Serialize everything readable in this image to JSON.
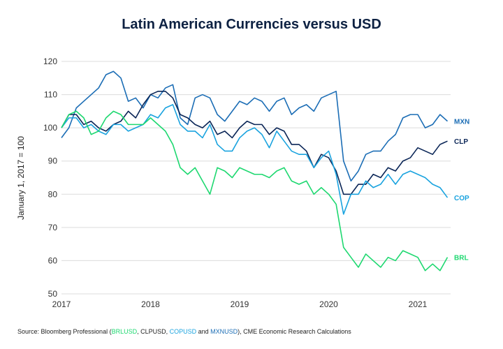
{
  "chart_data": {
    "type": "line",
    "title": "Latin American Currencies versus USD",
    "xlabel": "",
    "ylabel": "January 1, 2017 = 100",
    "ylim": [
      50,
      120
    ],
    "yticks": [
      "50",
      "60",
      "70",
      "80",
      "90",
      "100",
      "110",
      "120"
    ],
    "xticks": [
      "2017",
      "2018",
      "2019",
      "2020",
      "2021"
    ],
    "xrange": [
      "2017-01",
      "2021-05"
    ],
    "grid": "horizontal",
    "legend": "line-end labels, right",
    "x": [
      "2017-01",
      "2017-02",
      "2017-03",
      "2017-04",
      "2017-05",
      "2017-06",
      "2017-07",
      "2017-08",
      "2017-09",
      "2017-10",
      "2017-11",
      "2017-12",
      "2018-01",
      "2018-02",
      "2018-03",
      "2018-04",
      "2018-05",
      "2018-06",
      "2018-07",
      "2018-08",
      "2018-09",
      "2018-10",
      "2018-11",
      "2018-12",
      "2019-01",
      "2019-02",
      "2019-03",
      "2019-04",
      "2019-05",
      "2019-06",
      "2019-07",
      "2019-08",
      "2019-09",
      "2019-10",
      "2019-11",
      "2019-12",
      "2020-01",
      "2020-02",
      "2020-03",
      "2020-04",
      "2020-05",
      "2020-06",
      "2020-07",
      "2020-08",
      "2020-09",
      "2020-10",
      "2020-11",
      "2020-12",
      "2021-01",
      "2021-02",
      "2021-03",
      "2021-04",
      "2021-05"
    ],
    "series": [
      {
        "name": "MXN",
        "color": "#1b6db5",
        "values": [
          97,
          100,
          106,
          108,
          110,
          112,
          116,
          117,
          115,
          108,
          109,
          106,
          110,
          109,
          112,
          113,
          103,
          101,
          109,
          110,
          109,
          104,
          102,
          105,
          108,
          107,
          109,
          108,
          105,
          108,
          109,
          104,
          106,
          107,
          105,
          109,
          110,
          111,
          90,
          84,
          87,
          92,
          93,
          93,
          96,
          98,
          103,
          104,
          104,
          100,
          101,
          104,
          102
        ]
      },
      {
        "name": "CLP",
        "color": "#0b2657",
        "values": [
          100,
          104,
          104,
          101,
          102,
          100,
          99,
          101,
          102,
          105,
          103,
          107,
          110,
          111,
          111,
          109,
          104,
          103,
          101,
          100,
          102,
          98,
          99,
          97,
          100,
          102,
          101,
          101,
          98,
          100,
          99,
          95,
          95,
          93,
          88,
          92,
          91,
          87,
          80,
          80,
          83,
          83,
          86,
          85,
          88,
          87,
          90,
          91,
          94,
          93,
          92,
          95,
          96
        ]
      },
      {
        "name": "COP",
        "color": "#1aa3df",
        "values": [
          100,
          103,
          103,
          100,
          101,
          99,
          98,
          101,
          101,
          99,
          100,
          101,
          104,
          103,
          106,
          107,
          101,
          99,
          99,
          97,
          101,
          95,
          93,
          93,
          97,
          99,
          100,
          98,
          94,
          99,
          96,
          93,
          92,
          92,
          88,
          91,
          93,
          86,
          74,
          80,
          80,
          84,
          82,
          83,
          86,
          83,
          86,
          87,
          86,
          85,
          83,
          82,
          79
        ]
      },
      {
        "name": "BRL",
        "color": "#1ed870",
        "values": [
          100,
          104,
          105,
          103,
          98,
          99,
          103,
          105,
          104,
          101,
          101,
          101,
          103,
          101,
          99,
          95,
          88,
          86,
          88,
          84,
          80,
          88,
          87,
          85,
          88,
          87,
          86,
          86,
          85,
          87,
          88,
          84,
          83,
          84,
          80,
          82,
          80,
          77,
          64,
          61,
          58,
          62,
          60,
          58,
          61,
          60,
          63,
          62,
          61,
          57,
          59,
          57,
          61
        ]
      }
    ]
  },
  "source": {
    "prefix": "Source: Bloomberg Professional (",
    "brl": "BRLUSD",
    "sep1": ", CLPUSD, ",
    "cop": "COPUSD",
    "and": " and ",
    "mxn": "MXNUSD",
    "suffix": "), CME Economic Research Calculations"
  }
}
